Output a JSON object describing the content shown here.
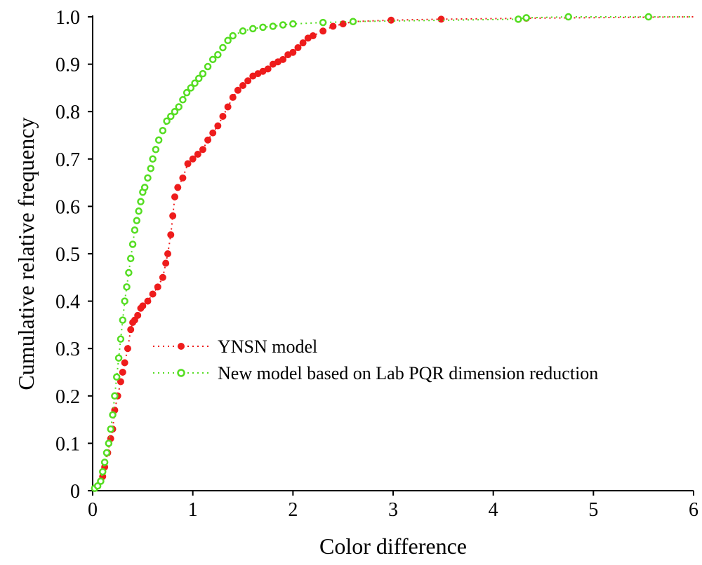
{
  "chart_data": {
    "type": "scatter",
    "title": "",
    "xlabel": "Color difference",
    "ylabel": "Cumulative relative frequency",
    "xlim": [
      0,
      6
    ],
    "ylim": [
      0,
      1.0
    ],
    "x_ticks": [
      "0",
      "1",
      "2",
      "3",
      "4",
      "5",
      "6"
    ],
    "y_ticks": [
      "0",
      "0.1",
      "0.2",
      "0.3",
      "0.4",
      "0.5",
      "0.6",
      "0.7",
      "0.8",
      "0.9",
      "1.0"
    ],
    "grid": false,
    "legend_position": "center-left",
    "series": [
      {
        "name": "YNSN model",
        "color": "#ee1c1c",
        "marker": "filled-circle",
        "line": "dotted",
        "x": [
          0.02,
          0.05,
          0.08,
          0.1,
          0.12,
          0.15,
          0.18,
          0.2,
          0.22,
          0.25,
          0.28,
          0.3,
          0.32,
          0.35,
          0.38,
          0.4,
          0.42,
          0.45,
          0.48,
          0.5,
          0.55,
          0.6,
          0.65,
          0.7,
          0.73,
          0.75,
          0.78,
          0.8,
          0.82,
          0.85,
          0.9,
          0.95,
          1.0,
          1.05,
          1.1,
          1.15,
          1.2,
          1.25,
          1.3,
          1.35,
          1.4,
          1.45,
          1.5,
          1.55,
          1.6,
          1.65,
          1.7,
          1.75,
          1.8,
          1.85,
          1.9,
          1.95,
          2.0,
          2.05,
          2.1,
          2.15,
          2.2,
          2.3,
          2.4,
          2.5,
          2.6,
          2.98,
          3.48,
          4.33
        ],
        "y": [
          0.005,
          0.01,
          0.02,
          0.03,
          0.05,
          0.08,
          0.11,
          0.13,
          0.17,
          0.2,
          0.23,
          0.25,
          0.27,
          0.3,
          0.34,
          0.355,
          0.36,
          0.37,
          0.385,
          0.39,
          0.4,
          0.415,
          0.43,
          0.45,
          0.48,
          0.5,
          0.54,
          0.58,
          0.62,
          0.64,
          0.66,
          0.69,
          0.7,
          0.71,
          0.72,
          0.74,
          0.755,
          0.77,
          0.79,
          0.81,
          0.83,
          0.845,
          0.855,
          0.865,
          0.875,
          0.88,
          0.885,
          0.89,
          0.9,
          0.905,
          0.91,
          0.92,
          0.925,
          0.935,
          0.945,
          0.955,
          0.96,
          0.97,
          0.98,
          0.985,
          0.99,
          0.993,
          0.995,
          0.997
        ]
      },
      {
        "name": "New model based on Lab PQR dimension reduction",
        "color": "#55dd22",
        "marker": "open-circle",
        "line": "dotted",
        "x": [
          0.02,
          0.05,
          0.08,
          0.1,
          0.12,
          0.14,
          0.16,
          0.18,
          0.2,
          0.22,
          0.24,
          0.26,
          0.28,
          0.3,
          0.32,
          0.34,
          0.36,
          0.38,
          0.4,
          0.42,
          0.44,
          0.46,
          0.48,
          0.5,
          0.52,
          0.55,
          0.58,
          0.6,
          0.63,
          0.66,
          0.7,
          0.74,
          0.78,
          0.82,
          0.86,
          0.9,
          0.94,
          0.98,
          1.02,
          1.06,
          1.1,
          1.15,
          1.2,
          1.25,
          1.3,
          1.35,
          1.4,
          1.5,
          1.6,
          1.7,
          1.8,
          1.9,
          2.0,
          2.3,
          2.6,
          4.25,
          4.33,
          4.75,
          5.55
        ],
        "y": [
          0.005,
          0.01,
          0.02,
          0.04,
          0.06,
          0.08,
          0.1,
          0.13,
          0.16,
          0.2,
          0.24,
          0.28,
          0.32,
          0.36,
          0.4,
          0.43,
          0.46,
          0.49,
          0.52,
          0.55,
          0.57,
          0.59,
          0.61,
          0.63,
          0.64,
          0.66,
          0.68,
          0.7,
          0.72,
          0.74,
          0.76,
          0.78,
          0.79,
          0.8,
          0.81,
          0.825,
          0.84,
          0.85,
          0.86,
          0.87,
          0.88,
          0.895,
          0.91,
          0.92,
          0.935,
          0.95,
          0.96,
          0.97,
          0.975,
          0.978,
          0.98,
          0.983,
          0.985,
          0.988,
          0.99,
          0.995,
          0.998,
          1.0,
          1.0
        ]
      }
    ]
  }
}
